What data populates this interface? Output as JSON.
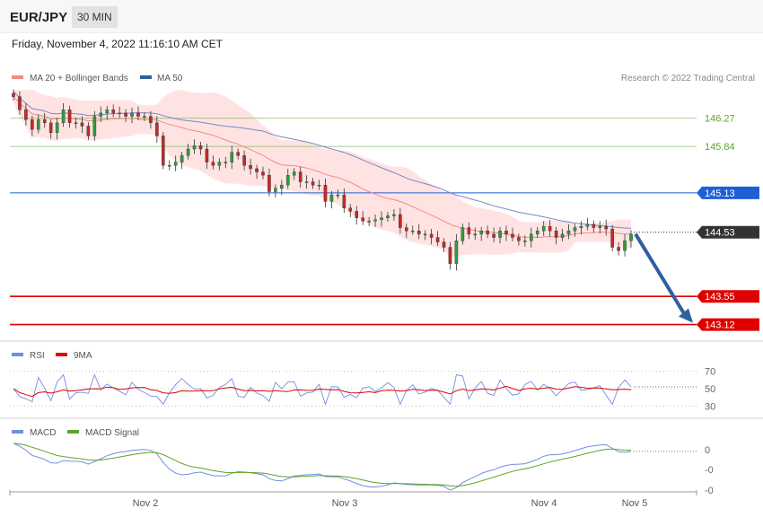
{
  "header": {
    "pair": "EUR/JPY",
    "timeframe": "30 MIN",
    "datetime": "Friday, November 4, 2022 11:16:10 AM CET"
  },
  "legend": {
    "bb": "MA 20 + Bollinger Bands",
    "ma50": "MA 50",
    "credit": "Research © 2022 Trading Central"
  },
  "rsi_legend": {
    "rsi": "RSI",
    "ma": "9MA"
  },
  "macd_legend": {
    "macd": "MACD",
    "signal": "MACD Signal"
  },
  "colors": {
    "resistance": "#5ea427",
    "pivot": "#1f5fd6",
    "support": "#e00000",
    "price": "#333333",
    "rsi": "#6f8fe0",
    "macd": "#6f8fe0",
    "signal": "#5ea427",
    "arrow": "#2f5f9f"
  },
  "chart_data": {
    "type": "candlestick",
    "price_range": [
      142.95,
      146.65
    ],
    "levels": [
      {
        "value": 146.27,
        "label": "146.27",
        "kind": "resistance"
      },
      {
        "value": 145.84,
        "label": "145.84",
        "kind": "resistance"
      },
      {
        "value": 145.13,
        "label": "145.13",
        "kind": "pivot"
      },
      {
        "value": 144.53,
        "label": "144.53",
        "kind": "last"
      },
      {
        "value": 143.55,
        "label": "143.55",
        "kind": "support"
      },
      {
        "value": 143.12,
        "label": "143.12",
        "kind": "support"
      }
    ],
    "closes": [
      146.6,
      146.4,
      146.25,
      146.1,
      146.25,
      146.2,
      146.05,
      146.2,
      146.4,
      146.2,
      146.2,
      146.15,
      146.0,
      146.3,
      146.35,
      146.4,
      146.35,
      146.35,
      146.3,
      146.35,
      146.3,
      146.3,
      146.2,
      146.0,
      145.55,
      145.55,
      145.6,
      145.7,
      145.8,
      145.85,
      145.8,
      145.6,
      145.55,
      145.6,
      145.6,
      145.75,
      145.7,
      145.55,
      145.5,
      145.45,
      145.4,
      145.15,
      145.2,
      145.25,
      145.4,
      145.45,
      145.3,
      145.3,
      145.25,
      145.25,
      145.0,
      145.1,
      145.1,
      144.9,
      144.85,
      144.75,
      144.7,
      144.7,
      144.72,
      144.75,
      144.78,
      144.8,
      144.6,
      144.55,
      144.55,
      144.5,
      144.5,
      144.45,
      144.38,
      144.3,
      144.05,
      144.4,
      144.6,
      144.5,
      144.5,
      144.55,
      144.5,
      144.45,
      144.55,
      144.5,
      144.45,
      144.4,
      144.4,
      144.5,
      144.55,
      144.62,
      144.55,
      144.45,
      144.5,
      144.55,
      144.6,
      144.62,
      144.65,
      144.6,
      144.62,
      144.58,
      144.3,
      144.25,
      144.4,
      144.5
    ],
    "x_labels": [
      "Nov 2",
      "Nov 3",
      "Nov 4",
      "Nov 5"
    ],
    "rsi": {
      "levels": [
        "70",
        "50",
        "30"
      ],
      "range": [
        20,
        80
      ]
    },
    "macd": {
      "ticks": [
        "0",
        "-0",
        "-0"
      ]
    }
  }
}
